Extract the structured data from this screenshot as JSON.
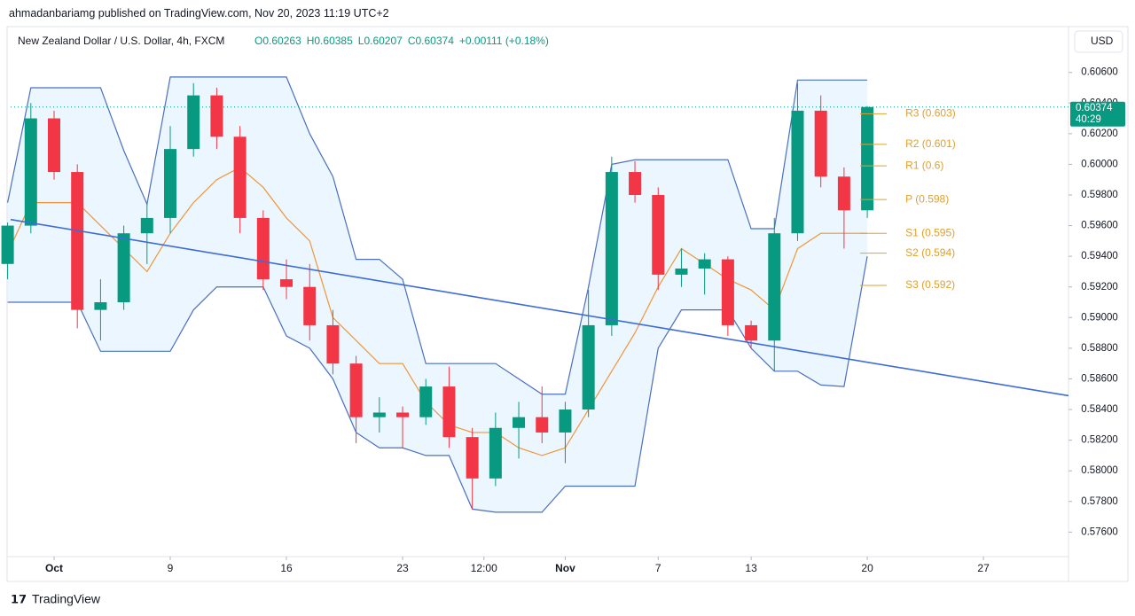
{
  "header": {
    "byline": "ahmadanbariamg published on TradingView.com, Nov 20, 2023 11:19 UTC+2",
    "symbol": "New Zealand Dollar / U.S. Dollar, 4h, FXCM",
    "ohlc": [
      "O0.60263",
      "H0.60385",
      "L0.60207",
      "C0.60374",
      "+0.00111 (+0.18%)"
    ],
    "currency": "USD",
    "countdown": "40:29",
    "footer": "TradingView"
  },
  "chart_data": {
    "type": "candlestick",
    "xlim": [
      -1.87,
      43.66
    ],
    "ylim": [
      0.5744,
      0.6087
    ],
    "xticks": [
      {
        "value": 0,
        "label": "Oct"
      },
      {
        "value": 5,
        "label": "9"
      },
      {
        "value": 10,
        "label": "16"
      },
      {
        "value": 15,
        "label": "23"
      },
      {
        "value": 18.5,
        "label": "12:00"
      },
      {
        "value": 22,
        "label": "Nov"
      },
      {
        "value": 26,
        "label": "7"
      },
      {
        "value": 30,
        "label": "13"
      },
      {
        "value": 35,
        "label": "20"
      },
      {
        "value": 40,
        "label": "27"
      }
    ],
    "yticks": [
      {
        "value": 0.576,
        "label": "0.57600"
      },
      {
        "value": 0.578,
        "label": "0.57800"
      },
      {
        "value": 0.58,
        "label": "0.58000"
      },
      {
        "value": 0.582,
        "label": "0.58200"
      },
      {
        "value": 0.584,
        "label": "0.58400"
      },
      {
        "value": 0.586,
        "label": "0.58600"
      },
      {
        "value": 0.588,
        "label": "0.58800"
      },
      {
        "value": 0.59,
        "label": "0.59000"
      },
      {
        "value": 0.592,
        "label": "0.59200"
      },
      {
        "value": 0.594,
        "label": "0.59400"
      },
      {
        "value": 0.596,
        "label": "0.59600"
      },
      {
        "value": 0.598,
        "label": "0.59800"
      },
      {
        "value": 0.6,
        "label": "0.60000"
      },
      {
        "value": 0.602,
        "label": "0.60200"
      },
      {
        "value": 0.604,
        "label": "0.60400"
      },
      {
        "value": 0.606,
        "label": "0.60600"
      }
    ],
    "up_color": "#089981",
    "down_color": "#f23645",
    "candles": {
      "x": [
        -2,
        -1,
        0,
        1,
        2,
        3,
        4,
        5,
        6,
        7,
        8,
        9,
        10,
        11,
        12,
        13,
        14,
        15,
        16,
        17,
        18,
        19,
        20,
        21,
        22,
        23,
        24,
        25,
        26,
        27,
        28,
        29,
        30,
        31,
        32,
        33,
        34,
        35
      ],
      "open": [
        0.5935,
        0.596,
        0.603,
        0.5995,
        0.5905,
        0.591,
        0.5955,
        0.5965,
        0.601,
        0.6045,
        0.6018,
        0.5965,
        0.5925,
        0.592,
        0.5895,
        0.587,
        0.5835,
        0.5838,
        0.5835,
        0.5855,
        0.5822,
        0.5795,
        0.5828,
        0.5835,
        0.5825,
        0.584,
        0.5895,
        0.5995,
        0.598,
        0.5928,
        0.5932,
        0.5938,
        0.5895,
        0.5885,
        0.5955,
        0.6035,
        0.5992,
        0.597
      ],
      "high": [
        0.5962,
        0.604,
        0.6035,
        0.6,
        0.5925,
        0.596,
        0.5975,
        0.6025,
        0.6053,
        0.605,
        0.6025,
        0.597,
        0.5938,
        0.5935,
        0.5905,
        0.5875,
        0.5848,
        0.5842,
        0.586,
        0.5868,
        0.5828,
        0.5838,
        0.5845,
        0.5855,
        0.5845,
        0.5918,
        0.6005,
        0.6002,
        0.5985,
        0.5945,
        0.5942,
        0.594,
        0.5898,
        0.5965,
        0.6053,
        0.6045,
        0.5998,
        0.6038
      ],
      "low": [
        0.5925,
        0.5955,
        0.599,
        0.5893,
        0.5885,
        0.5905,
        0.5935,
        0.5955,
        0.6005,
        0.601,
        0.5955,
        0.5918,
        0.5912,
        0.5885,
        0.5863,
        0.5818,
        0.5825,
        0.5815,
        0.583,
        0.5815,
        0.5775,
        0.579,
        0.5808,
        0.5818,
        0.5805,
        0.5835,
        0.5888,
        0.5975,
        0.5918,
        0.592,
        0.5915,
        0.5888,
        0.588,
        0.5865,
        0.595,
        0.5985,
        0.5945,
        0.5965
      ],
      "close": [
        0.596,
        0.603,
        0.5995,
        0.5905,
        0.591,
        0.5955,
        0.5965,
        0.601,
        0.6045,
        0.6018,
        0.5965,
        0.5925,
        0.592,
        0.5895,
        0.587,
        0.5835,
        0.5838,
        0.5835,
        0.5855,
        0.5822,
        0.5795,
        0.5828,
        0.5835,
        0.5825,
        0.584,
        0.5895,
        0.5995,
        0.598,
        0.5928,
        0.5932,
        0.5938,
        0.5895,
        0.5885,
        0.5955,
        0.6035,
        0.5992,
        0.597,
        0.60374
      ]
    },
    "channel": {
      "color": "#4a6fc1",
      "fill": "#e3f2fd",
      "upper": [
        0.5975,
        0.605,
        0.605,
        0.605,
        0.605,
        0.6009,
        0.5974,
        0.6057,
        0.6057,
        0.6057,
        0.6057,
        0.6057,
        0.6057,
        0.602,
        0.5992,
        0.5938,
        0.5938,
        0.5925,
        0.587,
        0.587,
        0.587,
        0.587,
        0.586,
        0.585,
        0.585,
        0.592,
        0.6,
        0.6003,
        0.6003,
        0.6003,
        0.6003,
        0.6003,
        0.5958,
        0.5958,
        0.6055,
        0.6055,
        0.6055,
        0.6055
      ],
      "lower": [
        0.591,
        0.591,
        0.591,
        0.591,
        0.5878,
        0.5878,
        0.5878,
        0.5878,
        0.5905,
        0.592,
        0.592,
        0.592,
        0.5888,
        0.588,
        0.586,
        0.5825,
        0.5815,
        0.5815,
        0.581,
        0.581,
        0.5775,
        0.5773,
        0.5773,
        0.5773,
        0.579,
        0.579,
        0.579,
        0.579,
        0.588,
        0.5905,
        0.5905,
        0.5905,
        0.588,
        0.5865,
        0.5865,
        0.5856,
        0.5855,
        0.594
      ]
    },
    "basis": {
      "color": "#f0953a",
      "values": [
        0.5942,
        0.5975,
        0.5975,
        0.5975,
        0.596,
        0.5945,
        0.593,
        0.5955,
        0.5975,
        0.599,
        0.5998,
        0.5985,
        0.5965,
        0.595,
        0.59,
        0.5885,
        0.587,
        0.587,
        0.5845,
        0.583,
        0.5825,
        0.5825,
        0.5815,
        0.581,
        0.5815,
        0.584,
        0.5865,
        0.589,
        0.592,
        0.5945,
        0.5935,
        0.5925,
        0.5918,
        0.5905,
        0.5945,
        0.5955,
        0.5955,
        0.5955
      ]
    },
    "trendline": {
      "color": "#3f6bd6",
      "x": [
        -1.87,
        43.66
      ],
      "values": [
        0.5964,
        0.5849
      ]
    },
    "pivots": {
      "color": "#e0a030",
      "levels": [
        {
          "value": 0.6033,
          "label": "R3 (0.603)"
        },
        {
          "value": 0.6013,
          "label": "R2 (0.601)"
        },
        {
          "value": 0.5999,
          "label": "R1 (0.6)"
        },
        {
          "value": 0.5977,
          "label": "P (0.598)"
        },
        {
          "value": 0.5955,
          "label": "S1 (0.595)"
        },
        {
          "value": 0.5942,
          "label": "S2 (0.594)"
        },
        {
          "value": 0.5921,
          "label": "S3 (0.592)"
        }
      ]
    },
    "last_price": {
      "value": 0.60374,
      "label": "0.60374"
    }
  }
}
